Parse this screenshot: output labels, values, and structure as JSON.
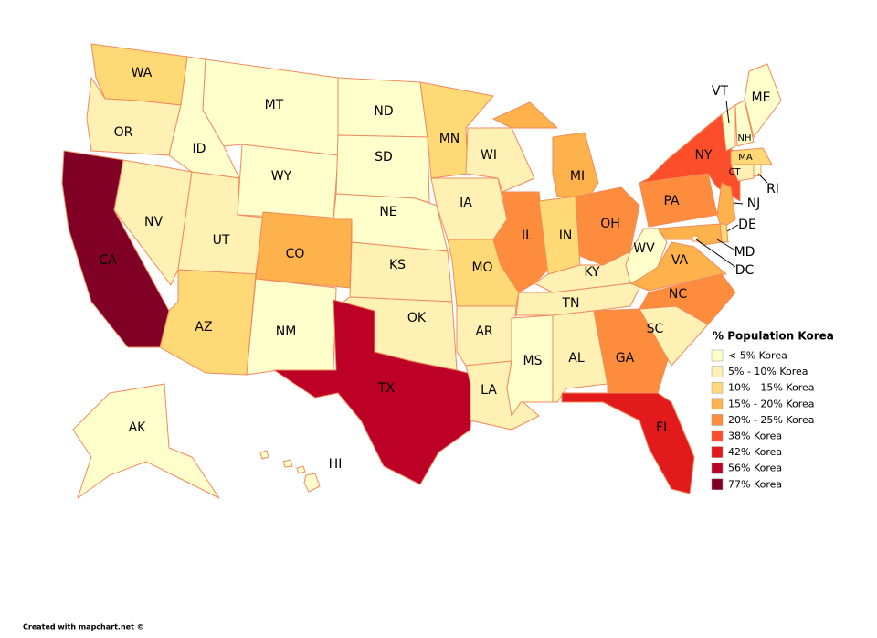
{
  "map": {
    "legend": {
      "title": "% Population Korea",
      "items": [
        {
          "label": "< 5% Korea",
          "color": "#ffffcc"
        },
        {
          "label": "5% - 10% Korea",
          "color": "#fff0b3"
        },
        {
          "label": "10% - 15% Korea",
          "color": "#fed976"
        },
        {
          "label": "15% - 20% Korea",
          "color": "#feb24c"
        },
        {
          "label": "20% - 25% Korea",
          "color": "#fd8d3c"
        },
        {
          "label": "38% Korea",
          "color": "#fc4e2a"
        },
        {
          "label": "42% Korea",
          "color": "#e31a1c"
        },
        {
          "label": "56% Korea",
          "color": "#bd0026"
        },
        {
          "label": "77% Korea",
          "color": "#800026"
        }
      ]
    },
    "states": [
      {
        "label": "WA",
        "color": "#fed976"
      },
      {
        "label": "OR",
        "color": "#fff0b3"
      },
      {
        "label": "CA",
        "color": "#800026"
      },
      {
        "label": "NV",
        "color": "#fff0b3"
      },
      {
        "label": "ID",
        "color": "#ffffcc"
      },
      {
        "label": "MT",
        "color": "#ffffcc"
      },
      {
        "label": "WY",
        "color": "#ffffcc"
      },
      {
        "label": "UT",
        "color": "#fff0b3"
      },
      {
        "label": "CO",
        "color": "#feb24c"
      },
      {
        "label": "AZ",
        "color": "#fed976"
      },
      {
        "label": "NM",
        "color": "#ffffcc"
      },
      {
        "label": "ND",
        "color": "#ffffcc"
      },
      {
        "label": "SD",
        "color": "#ffffcc"
      },
      {
        "label": "NE",
        "color": "#ffffcc"
      },
      {
        "label": "KS",
        "color": "#fff0b3"
      },
      {
        "label": "OK",
        "color": "#fff0b3"
      },
      {
        "label": "TX",
        "color": "#bd0026"
      },
      {
        "label": "MN",
        "color": "#fed976"
      },
      {
        "label": "IA",
        "color": "#fff0b3"
      },
      {
        "label": "MO",
        "color": "#fed976"
      },
      {
        "label": "AR",
        "color": "#fff0b3"
      },
      {
        "label": "LA",
        "color": "#fff0b3"
      },
      {
        "label": "WI",
        "color": "#fff0b3"
      },
      {
        "label": "IL",
        "color": "#fd8d3c"
      },
      {
        "label": "MI",
        "color": "#feb24c"
      },
      {
        "label": "IN",
        "color": "#fed976"
      },
      {
        "label": "OH",
        "color": "#fd8d3c"
      },
      {
        "label": "KY",
        "color": "#fff0b3"
      },
      {
        "label": "TN",
        "color": "#fff0b3"
      },
      {
        "label": "MS",
        "color": "#ffffcc"
      },
      {
        "label": "AL",
        "color": "#fff0b3"
      },
      {
        "label": "GA",
        "color": "#fd8d3c"
      },
      {
        "label": "FL",
        "color": "#e31a1c"
      },
      {
        "label": "SC",
        "color": "#fff0b3"
      },
      {
        "label": "NC",
        "color": "#fd8d3c"
      },
      {
        "label": "VA",
        "color": "#feb24c"
      },
      {
        "label": "WV",
        "color": "#ffffcc"
      },
      {
        "label": "PA",
        "color": "#fd8d3c"
      },
      {
        "label": "NY",
        "color": "#fc4e2a"
      },
      {
        "label": "NJ",
        "color": "#feb24c"
      },
      {
        "label": "DE",
        "color": "#fed976"
      },
      {
        "label": "MD",
        "color": "#feb24c"
      },
      {
        "label": "DC",
        "color": "#ffffcc"
      },
      {
        "label": "VT",
        "color": "#ffffcc"
      },
      {
        "label": "NH",
        "color": "#ffffcc"
      },
      {
        "label": "ME",
        "color": "#ffffcc"
      },
      {
        "label": "MA",
        "color": "#fed976"
      },
      {
        "label": "CT",
        "color": "#fff0b3"
      },
      {
        "label": "RI",
        "color": "#ffffcc"
      },
      {
        "label": "AK",
        "color": "#ffffcc"
      },
      {
        "label": "HI",
        "color": "#ffffcc"
      }
    ]
  },
  "footer": "Created with mapchart.net ©"
}
